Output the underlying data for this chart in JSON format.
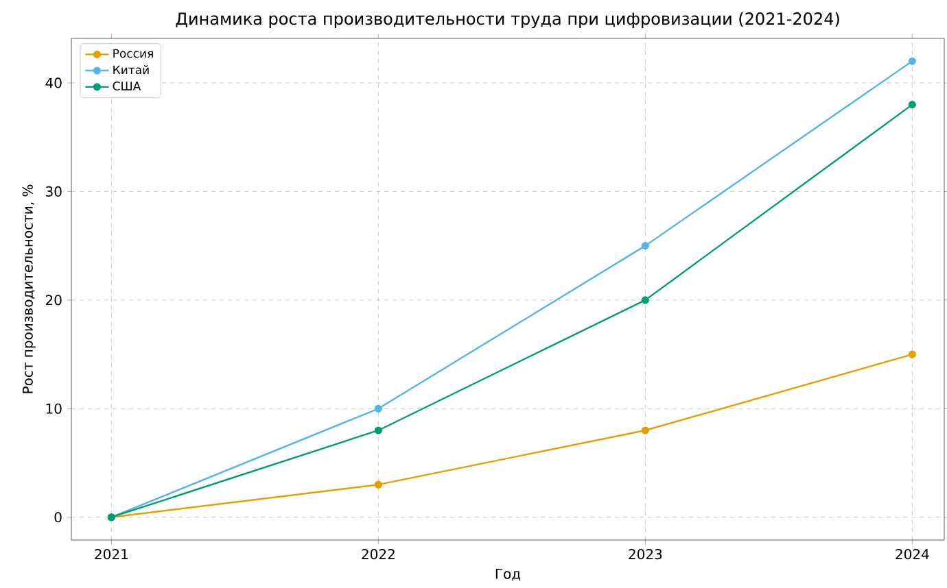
{
  "chart_data": {
    "type": "line",
    "title": "Динамика роста производительности труда при цифровизации (2021-2024)",
    "xlabel": "Год",
    "ylabel": "Рост производительности, %",
    "x": [
      2021,
      2022,
      2023,
      2024
    ],
    "series": [
      {
        "name": "Россия",
        "color": "#e69f00",
        "values": [
          0,
          3,
          8,
          15
        ]
      },
      {
        "name": "Китай",
        "color": "#56b4e9",
        "values": [
          0,
          10,
          25,
          42
        ]
      },
      {
        "name": "США",
        "color": "#009e73",
        "values": [
          0,
          8,
          20,
          38
        ]
      }
    ],
    "xlim": [
      2020.85,
      2024.12
    ],
    "ylim": [
      -2.1,
      44.1
    ],
    "xticks": [
      2021,
      2022,
      2023,
      2024
    ],
    "yticks": [
      0,
      10,
      20,
      30,
      40
    ],
    "grid": true,
    "legend": "top left",
    "marker": "circle",
    "line_style": "solid"
  }
}
